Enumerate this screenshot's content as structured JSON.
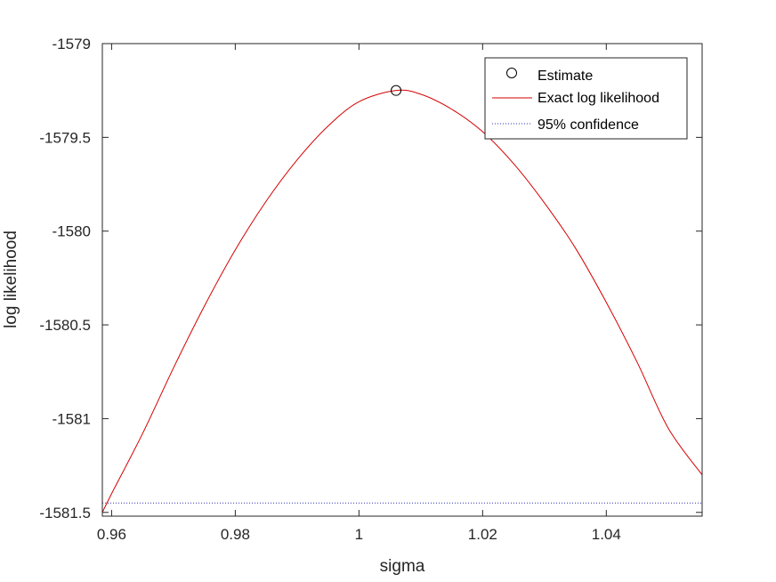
{
  "chart_data": {
    "type": "line",
    "title": "",
    "xlabel": "sigma",
    "ylabel": "log likelihood",
    "xlim": [
      0.9585,
      1.0555
    ],
    "ylim": [
      -1581.52,
      -1579
    ],
    "x_ticks": [
      0.96,
      0.98,
      1,
      1.02,
      1.04
    ],
    "x_tick_labels": [
      "0.96",
      "0.98",
      "1",
      "1.02",
      "1.04"
    ],
    "y_ticks": [
      -1579,
      -1579.5,
      -1580,
      -1580.5,
      -1581,
      -1581.5
    ],
    "y_tick_labels": [
      "-1579",
      "-1579.5",
      "-1580",
      "-1580.5",
      "-1581",
      "-1581.5"
    ],
    "grid": false,
    "legend_position": "top-right",
    "colors": {
      "curve": "#d40000",
      "confidence": "#3030b0",
      "marker": "#000000",
      "axes": "#262626"
    },
    "series": [
      {
        "name": "Estimate",
        "kind": "marker",
        "points": [
          {
            "x": 1.006,
            "y": -1579.25
          }
        ]
      },
      {
        "name": "Exact log likelihood",
        "kind": "line",
        "points": [
          {
            "x": 0.9585,
            "y": -1581.5
          },
          {
            "x": 0.96,
            "y": -1581.4
          },
          {
            "x": 0.965,
            "y": -1581.08
          },
          {
            "x": 0.97,
            "y": -1580.73
          },
          {
            "x": 0.975,
            "y": -1580.4
          },
          {
            "x": 0.98,
            "y": -1580.1
          },
          {
            "x": 0.985,
            "y": -1579.84
          },
          {
            "x": 0.99,
            "y": -1579.62
          },
          {
            "x": 0.995,
            "y": -1579.44
          },
          {
            "x": 1.0,
            "y": -1579.31
          },
          {
            "x": 1.006,
            "y": -1579.25
          },
          {
            "x": 1.01,
            "y": -1579.27
          },
          {
            "x": 1.015,
            "y": -1579.35
          },
          {
            "x": 1.02,
            "y": -1579.47
          },
          {
            "x": 1.025,
            "y": -1579.64
          },
          {
            "x": 1.03,
            "y": -1579.85
          },
          {
            "x": 1.035,
            "y": -1580.09
          },
          {
            "x": 1.04,
            "y": -1580.38
          },
          {
            "x": 1.045,
            "y": -1580.7
          },
          {
            "x": 1.05,
            "y": -1581.05
          },
          {
            "x": 1.0555,
            "y": -1581.3
          }
        ]
      },
      {
        "name": "95% confidence",
        "kind": "hline",
        "y": -1581.45
      }
    ]
  }
}
